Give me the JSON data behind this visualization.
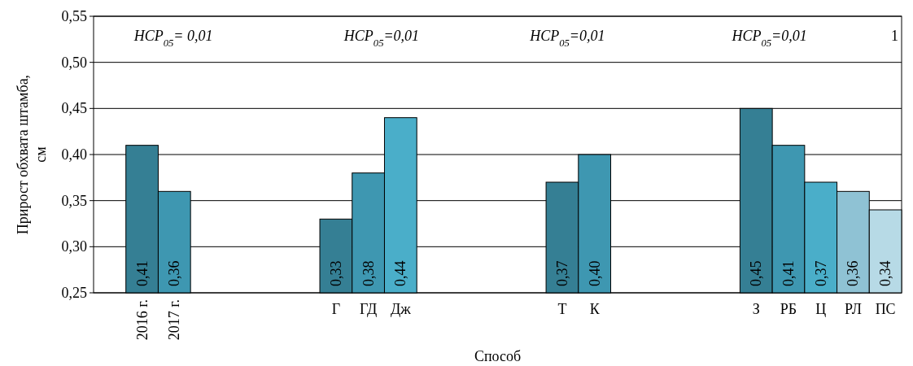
{
  "chart_data": {
    "type": "bar",
    "xlabel": "Способ",
    "ylabel": "Прирост обхвата штамба, см",
    "categories": [
      null,
      "2016 г.",
      "2017 г.",
      null,
      null,
      null,
      null,
      "Г",
      "ГД",
      "Дж",
      null,
      null,
      null,
      null,
      "Т",
      "К",
      null,
      null,
      null,
      null,
      "З",
      "РБ",
      "Ц",
      "РЛ",
      "ПС"
    ],
    "values": [
      null,
      0.41,
      0.36,
      null,
      null,
      null,
      null,
      0.33,
      0.38,
      0.44,
      null,
      null,
      null,
      null,
      0.37,
      0.4,
      null,
      null,
      null,
      null,
      0.45,
      0.41,
      0.37,
      0.36,
      0.34
    ],
    "colors": [
      null,
      "#357f94",
      "#3e97b1",
      null,
      null,
      null,
      null,
      "#357f94",
      "#3e97b1",
      "#4aaec9",
      null,
      null,
      null,
      null,
      "#357f94",
      "#3e97b1",
      null,
      null,
      null,
      null,
      "#357f94",
      "#3e97b1",
      "#4aaec9",
      "#8fc2d4",
      "#b7dae6"
    ],
    "value_labels": [
      null,
      "0,41",
      "0,36",
      null,
      null,
      null,
      null,
      "0,33",
      "0,38",
      "0,44",
      null,
      null,
      null,
      null,
      "0,37",
      "0,40",
      null,
      null,
      null,
      null,
      "0,45",
      "0,41",
      "0,37",
      "0,36",
      "0,34"
    ],
    "ylim": [
      0.25,
      0.55
    ],
    "yticks": [
      {
        "value": 0.25,
        "label": "0,25"
      },
      {
        "value": 0.3,
        "label": "0,30"
      },
      {
        "value": 0.35,
        "label": "0,35"
      },
      {
        "value": 0.4,
        "label": "0,40"
      },
      {
        "value": 0.45,
        "label": "0,45"
      },
      {
        "value": 0.5,
        "label": "0,50"
      },
      {
        "value": 0.55,
        "label": "0,55"
      }
    ],
    "grid": "y",
    "annotations": [
      "НСР$_{05}$= 0,01",
      "НСР$_{05}$=0,01",
      "НСР$_{05}$=0,01",
      "НСР$_{05}$=0,01",
      "1"
    ]
  }
}
